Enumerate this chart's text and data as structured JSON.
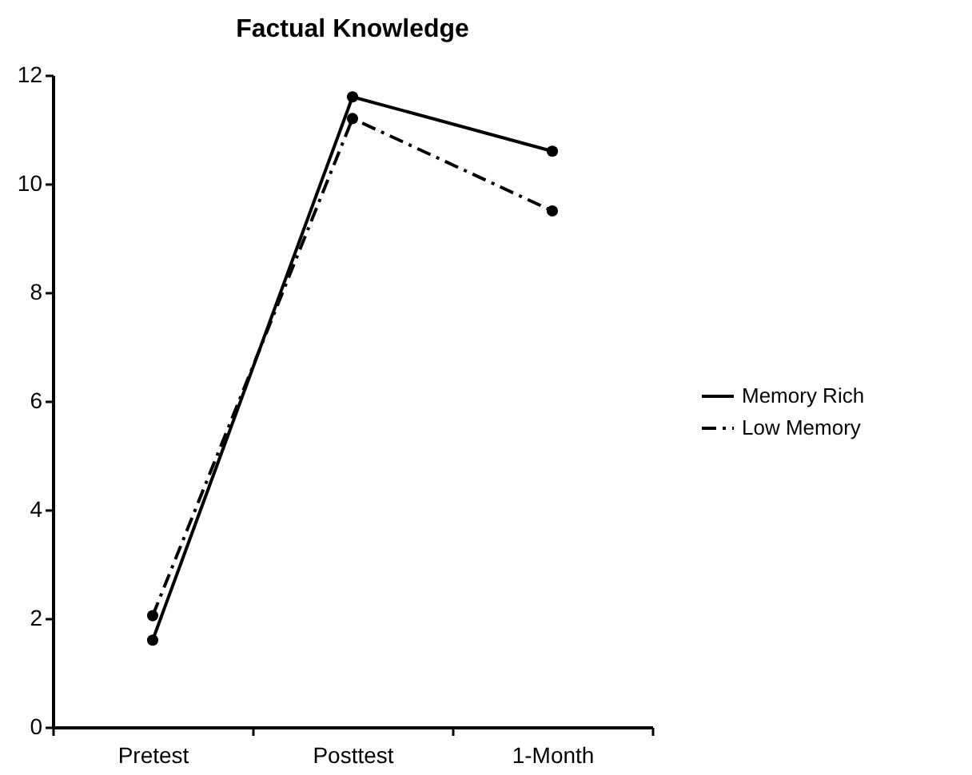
{
  "chart_data": {
    "type": "line",
    "title": "Factual Knowledge",
    "categories": [
      "Pretest",
      "Posttest",
      "1-Month"
    ],
    "series": [
      {
        "name": "Memory Rich",
        "color": "#000000",
        "line_style": "solid",
        "values": [
          1.6,
          11.6,
          10.6
        ]
      },
      {
        "name": "Low Memory",
        "color": "#000000",
        "line_style": "dashed",
        "values": [
          2.05,
          11.2,
          9.5
        ]
      }
    ],
    "ylim": [
      0,
      12
    ],
    "yticks": [
      0,
      2,
      4,
      6,
      8,
      10,
      12
    ],
    "grid": false,
    "legend": "right",
    "marker": "circle"
  }
}
